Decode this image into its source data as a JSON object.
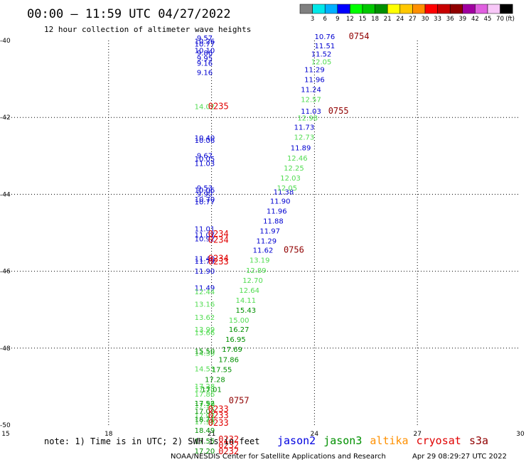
{
  "header": {
    "title": "00:00 – 11:59 UTC 04/27/2022",
    "subtitle": "12 hour collection of altimeter wave heights"
  },
  "colorbar": {
    "labels": [
      "3",
      "6",
      "9",
      "12",
      "15",
      "18",
      "21",
      "24",
      "27",
      "30",
      "33",
      "36",
      "39",
      "42",
      "45",
      "70"
    ],
    "unit": "(ft)",
    "colors": [
      "#808080",
      "#00e8e8",
      "#00b0ff",
      "#0000ff",
      "#00ff00",
      "#00c800",
      "#009000",
      "#ffff00",
      "#ffc800",
      "#ff9000",
      "#ff0000",
      "#c80000",
      "#900000",
      "#a000a0",
      "#e060e0",
      "#f8c8f8",
      "#000000"
    ]
  },
  "note": "note: 1) Time is in UTC; 2) SWH is in feet",
  "legend": [
    {
      "name": "jason2",
      "color": "#0000e0"
    },
    {
      "name": "jason3",
      "color": "#009000"
    },
    {
      "name": "altika",
      "color": "#ff9000"
    },
    {
      "name": "cryosat",
      "color": "#e00000"
    },
    {
      "name": "s3a",
      "color": "#900000"
    }
  ],
  "footer": {
    "source": "NOAA/NESDIS Center for Satellite Applications and Research",
    "timestamp": "Apr 29 08:29:27 UTC 2022"
  },
  "chart_data": {
    "type": "scatter",
    "xlim": [
      15,
      30
    ],
    "ylim": [
      -50,
      -40
    ],
    "xticks": [
      "15",
      "18",
      "21",
      "24",
      "27",
      "30"
    ],
    "yticks": [
      "-40",
      "-42",
      "-44",
      "-46",
      "-48",
      "-50"
    ],
    "grid": true,
    "series": [
      {
        "color": "#0000d0",
        "points": [
          [
            20.8,
            -40.0,
            "9.57"
          ],
          [
            20.8,
            -40.08,
            "10.26"
          ],
          [
            20.8,
            -40.16,
            "10.77"
          ],
          [
            20.8,
            -40.32,
            "10.10"
          ],
          [
            20.8,
            -40.39,
            "9.86"
          ],
          [
            20.8,
            -40.53,
            "9.95"
          ],
          [
            20.8,
            -40.66,
            "9.16"
          ],
          [
            20.8,
            -40.9,
            "9.16"
          ],
          [
            20.8,
            -42.6,
            "10.40"
          ],
          [
            20.8,
            -42.66,
            "10.06"
          ],
          [
            20.8,
            -43.06,
            "9.67"
          ],
          [
            20.8,
            -43.14,
            "10.05"
          ],
          [
            20.8,
            -43.26,
            "11.03"
          ],
          [
            20.8,
            -43.9,
            "9.53"
          ],
          [
            20.8,
            -43.96,
            "10.06"
          ],
          [
            20.8,
            -44.06,
            "9.90"
          ],
          [
            20.8,
            -44.2,
            "10.70"
          ],
          [
            20.8,
            -44.26,
            "10.77"
          ],
          [
            20.8,
            -44.96,
            "11.01"
          ],
          [
            20.8,
            -45.12,
            "11.07"
          ],
          [
            20.8,
            -45.22,
            "10.92"
          ],
          [
            20.8,
            -45.74,
            "11.40"
          ],
          [
            20.8,
            -45.8,
            "11.79"
          ],
          [
            20.8,
            -46.06,
            "11.90"
          ],
          [
            20.8,
            -46.5,
            "11.49"
          ],
          [
            24.3,
            -39.96,
            "10.76"
          ],
          [
            24.3,
            -40.2,
            "11.51"
          ],
          [
            24.2,
            -40.42,
            "11.52"
          ],
          [
            24.0,
            -40.82,
            "11.29"
          ],
          [
            24.0,
            -41.08,
            "11.96"
          ],
          [
            23.9,
            -41.34,
            "11.24"
          ],
          [
            23.9,
            -41.9,
            "11.03"
          ],
          [
            23.7,
            -42.32,
            "11.73"
          ],
          [
            23.6,
            -42.86,
            "11.89"
          ],
          [
            23.1,
            -44.0,
            "11.38"
          ],
          [
            23.0,
            -44.24,
            "11.90"
          ],
          [
            22.9,
            -44.5,
            "11.96"
          ],
          [
            22.8,
            -44.76,
            "11.88"
          ],
          [
            22.7,
            -45.02,
            "11.97"
          ],
          [
            22.6,
            -45.28,
            "11.29"
          ],
          [
            22.5,
            -45.52,
            "11.62"
          ]
        ]
      },
      {
        "color": "#50dc50",
        "points": [
          [
            20.8,
            -41.78,
            "14.02"
          ],
          [
            24.2,
            -40.62,
            "12.05"
          ],
          [
            23.9,
            -41.6,
            "12.57"
          ],
          [
            23.8,
            -42.08,
            "12.98"
          ],
          [
            23.7,
            -42.58,
            "12.73"
          ],
          [
            23.5,
            -43.12,
            "12.46"
          ],
          [
            23.4,
            -43.38,
            "12.25"
          ],
          [
            23.3,
            -43.64,
            "12.03"
          ],
          [
            23.2,
            -43.9,
            "12.05"
          ],
          [
            22.4,
            -45.78,
            "13.19"
          ],
          [
            22.3,
            -46.04,
            "12.89"
          ],
          [
            22.2,
            -46.3,
            "12.70"
          ],
          [
            22.1,
            -46.56,
            "12.64"
          ],
          [
            22.0,
            -46.82,
            "14.11"
          ],
          [
            21.8,
            -47.34,
            "15.00"
          ],
          [
            20.8,
            -46.6,
            "12.44"
          ],
          [
            20.8,
            -46.92,
            "13.16"
          ],
          [
            20.8,
            -47.26,
            "13.62"
          ],
          [
            20.8,
            -47.58,
            "13.99"
          ],
          [
            20.8,
            -47.66,
            "13.66"
          ],
          [
            20.8,
            -48.2,
            "14.30"
          ],
          [
            20.8,
            -48.6,
            "14.53"
          ],
          [
            20.8,
            -49.06,
            "17.28"
          ],
          [
            20.8,
            -49.12,
            "17.38"
          ],
          [
            20.8,
            -49.26,
            "17.86"
          ],
          [
            20.8,
            -49.5,
            "17.96"
          ],
          [
            20.8,
            -49.56,
            "17.18"
          ],
          [
            20.8,
            -49.82,
            "17.93"
          ],
          [
            20.8,
            -49.98,
            "17.98"
          ]
        ]
      },
      {
        "color": "#009000",
        "points": [
          [
            22.0,
            -47.08,
            "15.43"
          ],
          [
            21.8,
            -47.58,
            "16.27"
          ],
          [
            21.7,
            -47.84,
            "16.95"
          ],
          [
            21.6,
            -48.1,
            "17.69"
          ],
          [
            21.5,
            -48.36,
            "17.86"
          ],
          [
            21.3,
            -48.62,
            "17.55"
          ],
          [
            21.1,
            -48.88,
            "17.28"
          ],
          [
            21.0,
            -49.14,
            "17.01"
          ],
          [
            20.8,
            -49.5,
            "17.52"
          ],
          [
            20.8,
            -49.7,
            "17.02"
          ],
          [
            20.8,
            -49.92,
            "18.71"
          ],
          [
            20.8,
            -50.2,
            "18.49"
          ],
          [
            20.8,
            -50.48,
            "17.55"
          ],
          [
            20.8,
            -50.74,
            "17.20"
          ],
          [
            20.8,
            -48.14,
            "15.50"
          ]
        ]
      }
    ],
    "time_labels": [
      {
        "x": 25.0,
        "y": -39.96,
        "text": "0754",
        "color": "#900000"
      },
      {
        "x": 24.4,
        "y": -41.9,
        "text": "0755",
        "color": "#900000"
      },
      {
        "x": 23.1,
        "y": -45.52,
        "text": "0756",
        "color": "#900000"
      },
      {
        "x": 21.5,
        "y": -49.44,
        "text": "0757",
        "color": "#900000"
      },
      {
        "x": 20.9,
        "y": -41.78,
        "text": "0235",
        "color": "#e00000"
      },
      {
        "x": 20.9,
        "y": -45.1,
        "text": "0234",
        "color": "#e00000"
      },
      {
        "x": 20.9,
        "y": -45.26,
        "text": "0234",
        "color": "#e00000"
      },
      {
        "x": 20.9,
        "y": -45.74,
        "text": "0234",
        "color": "#e00000"
      },
      {
        "x": 20.9,
        "y": -45.82,
        "text": "0233",
        "color": "#e00000"
      },
      {
        "x": 20.9,
        "y": -49.66,
        "text": "0233",
        "color": "#e00000"
      },
      {
        "x": 20.9,
        "y": -49.82,
        "text": "0233",
        "color": "#e00000"
      },
      {
        "x": 20.9,
        "y": -50.02,
        "text": "0233",
        "color": "#e00000"
      },
      {
        "x": 21.2,
        "y": -50.44,
        "text": "0232",
        "color": "#e00000"
      },
      {
        "x": 21.2,
        "y": -50.6,
        "text": "0232",
        "color": "#e00000"
      },
      {
        "x": 21.2,
        "y": -50.76,
        "text": "0232",
        "color": "#e00000"
      }
    ]
  }
}
